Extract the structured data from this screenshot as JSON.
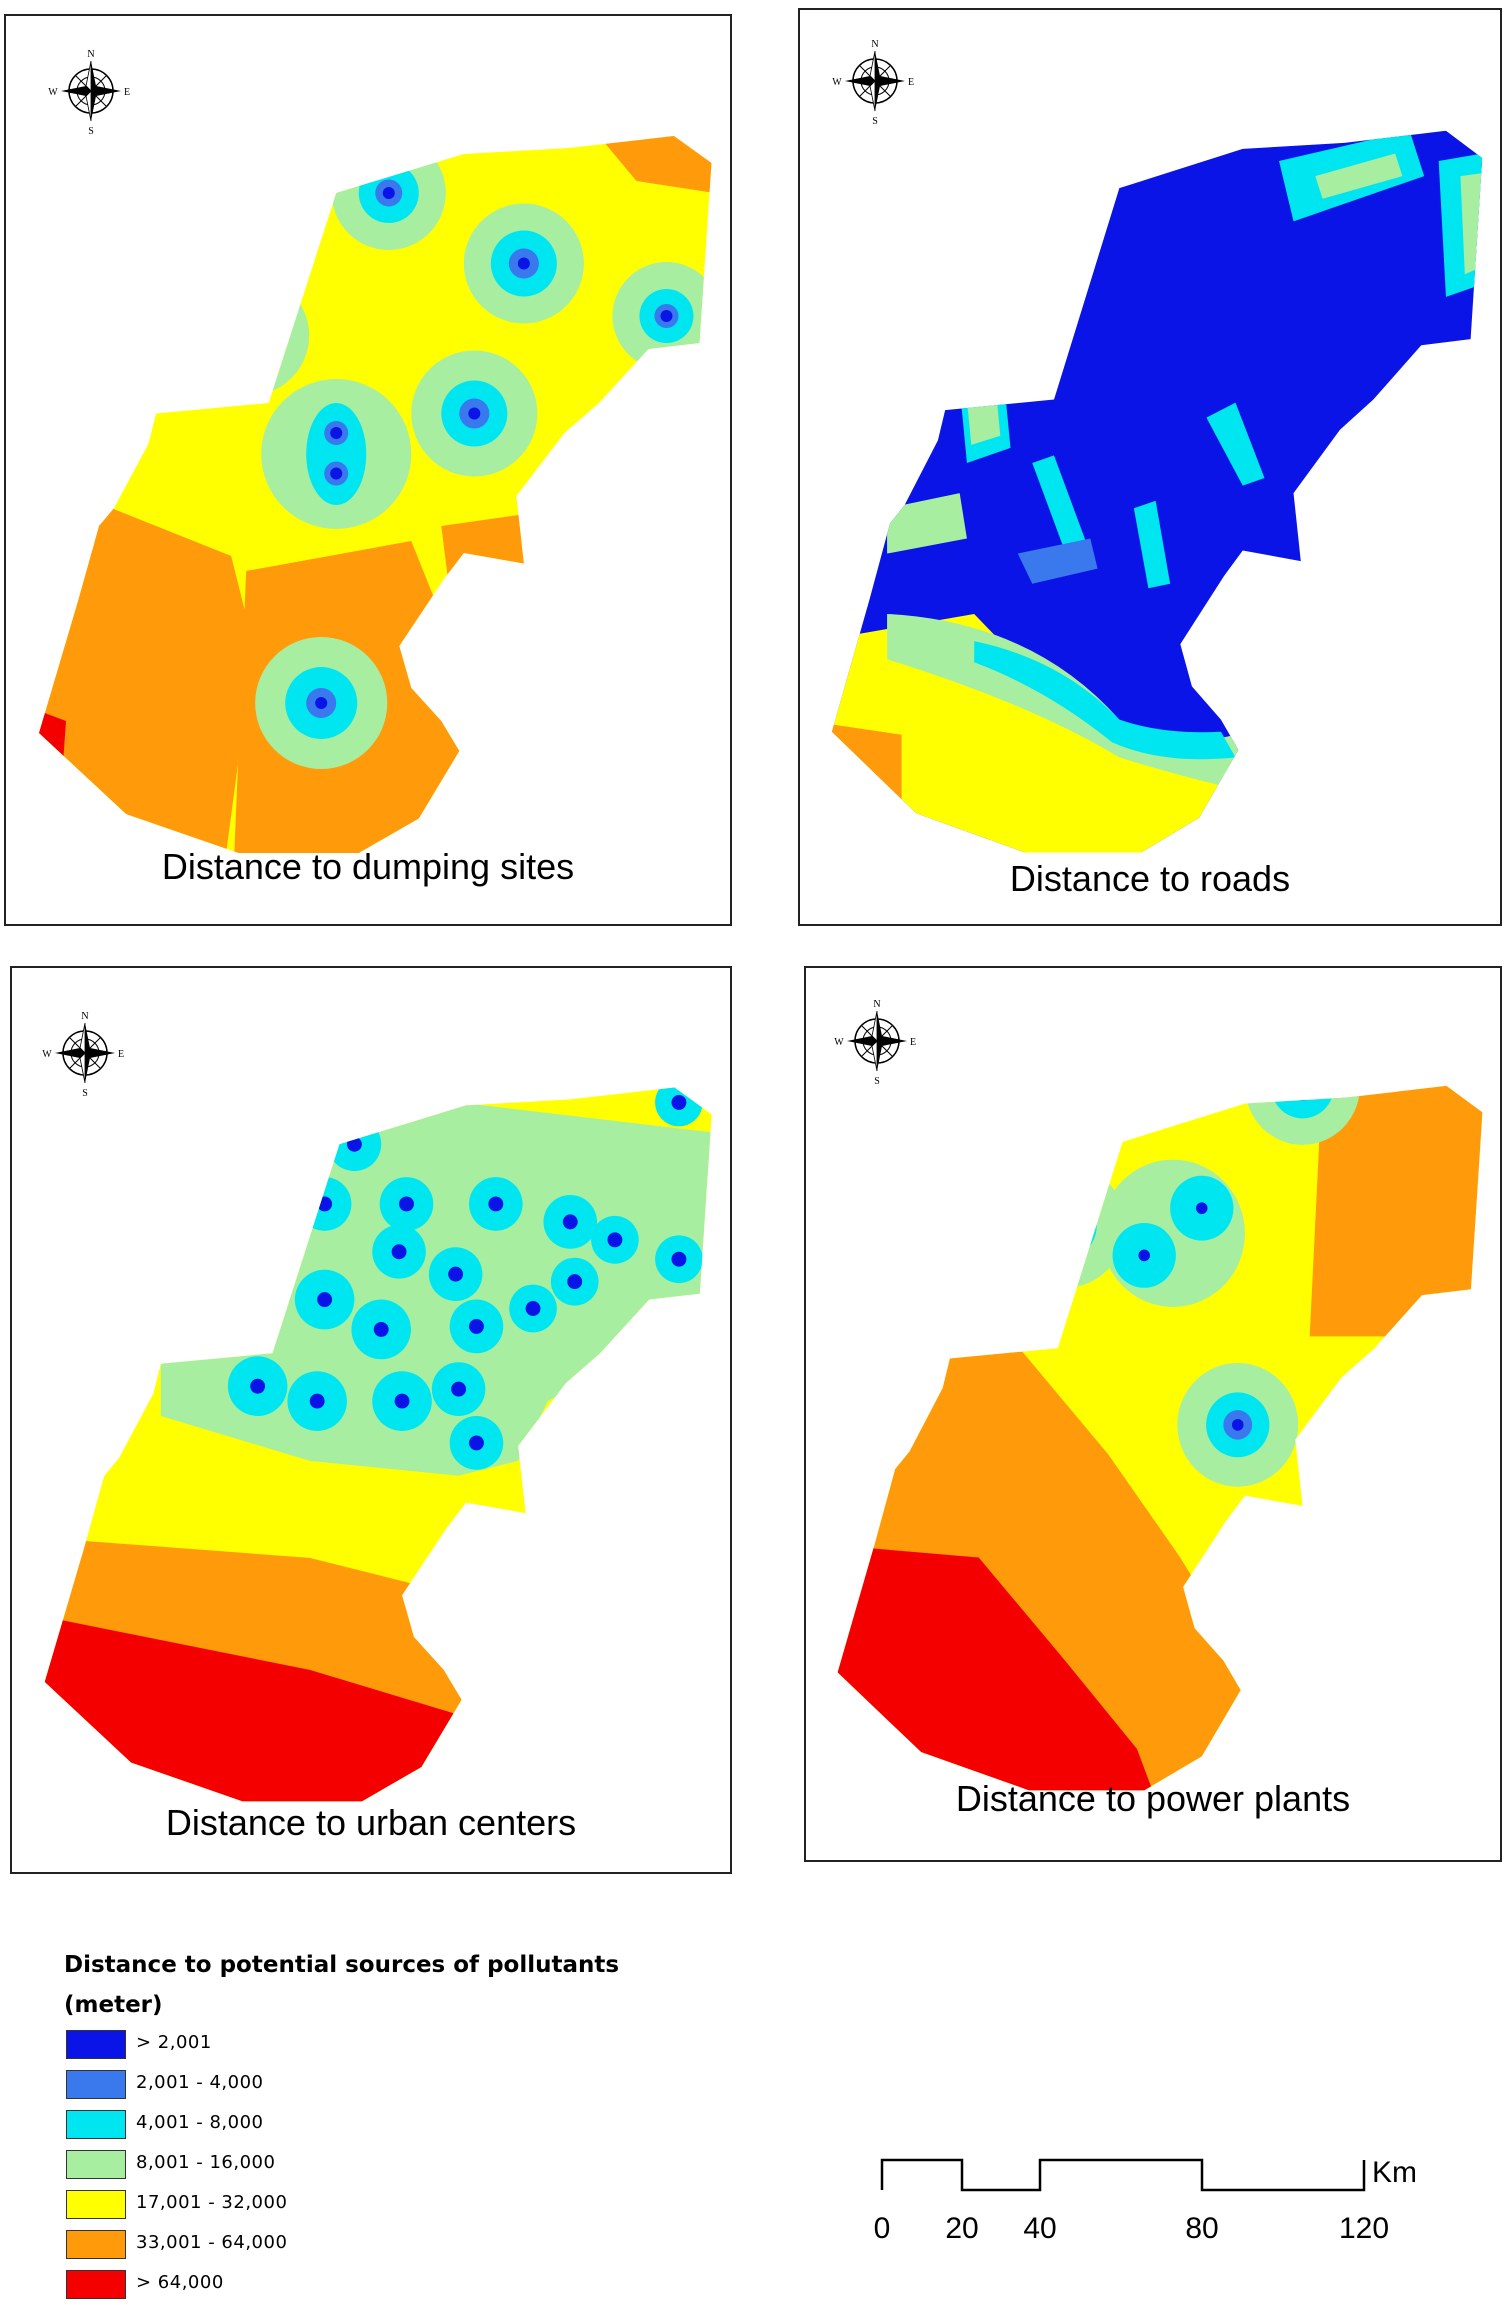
{
  "panels": [
    {
      "title": "Distance to dumping sites"
    },
    {
      "title": "Distance to roads"
    },
    {
      "title": "Distance to urban centers"
    },
    {
      "title": "Distance to power plants"
    }
  ],
  "compass": {
    "n": "N",
    "s": "S",
    "e": "E",
    "w": "W",
    "icon": "compass-rose-icon"
  },
  "legend": {
    "title": "Distance to potential sources of pollutants",
    "unit": "(meter)",
    "items": [
      {
        "label": "> 2,001",
        "color": "#0a14e6"
      },
      {
        "label": "2,001 - 4,000",
        "color": "#3a78ee"
      },
      {
        "label": "4,001 - 8,000",
        "color": "#00e6f0"
      },
      {
        "label": "8,001 - 16,000",
        "color": "#a8eea0"
      },
      {
        "label": "17,001 - 32,000",
        "color": "#ffff00"
      },
      {
        "label": "33,001 - 64,000",
        "color": "#ff9a0a"
      },
      {
        "label": "> 64,000",
        "color": "#f50000"
      }
    ]
  },
  "scale": {
    "ticks": [
      "0",
      "20",
      "40",
      "80",
      "120"
    ],
    "unit": "Km"
  }
}
